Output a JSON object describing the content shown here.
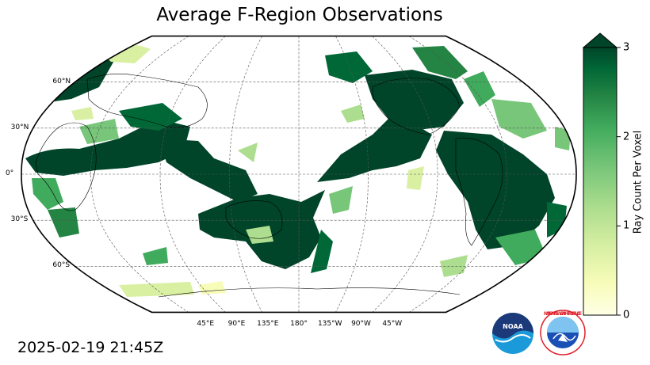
{
  "title": "Average F-Region Observations",
  "map": {
    "projection": "robinson",
    "central_longitude": 180,
    "lat_labels": [
      {
        "lat": 60,
        "text": "60°N"
      },
      {
        "lat": 30,
        "text": "30°N"
      },
      {
        "lat": 0,
        "text": "0°"
      },
      {
        "lat": -30,
        "text": "30°S"
      },
      {
        "lat": -60,
        "text": "60°S"
      }
    ],
    "lon_labels": [
      {
        "lon": 45,
        "text": "45°E"
      },
      {
        "lon": 90,
        "text": "90°E"
      },
      {
        "lon": 135,
        "text": "135°E"
      },
      {
        "lon": 180,
        "text": "180°"
      },
      {
        "lon": 225,
        "text": "135°W"
      },
      {
        "lon": 270,
        "text": "90°W"
      },
      {
        "lon": 315,
        "text": "45°W"
      }
    ],
    "gridlines": "dashed",
    "field_name": "Ray Count Per Voxel",
    "high_regions": [
      "Northern Europe / North Atlantic",
      "Africa and Middle East",
      "Indian Ocean to Southeast Asia",
      "Australia and surrounding oceans",
      "Western South Pacific",
      "Central and Eastern Pacific",
      "North America",
      "South America",
      "South Atlantic"
    ]
  },
  "colorbar": {
    "label": "Ray Count Per Voxel",
    "min": 0,
    "max": 3,
    "extend": "max",
    "ticks": [
      {
        "value": 0,
        "text": "0"
      },
      {
        "value": 1,
        "text": "1"
      },
      {
        "value": 2,
        "text": "2"
      },
      {
        "value": 3,
        "text": "3"
      }
    ],
    "colors": [
      "#ffffe5",
      "#f7fcb9",
      "#d9f0a3",
      "#addd8e",
      "#78c679",
      "#41ab5d",
      "#238443",
      "#006837",
      "#004529"
    ]
  },
  "timestamp": "2025-02-19 21:45Z",
  "logos": {
    "noaa": {
      "icon": "noaa-logo",
      "text": "NOAA"
    },
    "nws": {
      "icon": "nws-logo",
      "text": "NATIONAL WEATHER SERVICE"
    }
  }
}
